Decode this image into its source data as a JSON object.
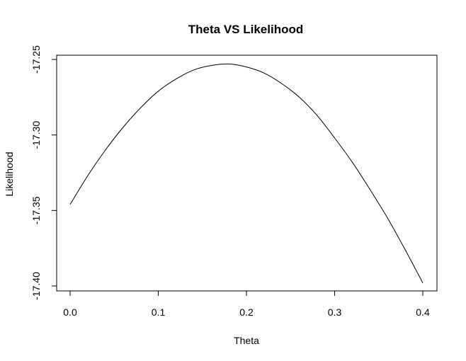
{
  "chart_data": {
    "type": "line",
    "title": "Theta VS Likelihood",
    "xlabel": "Theta",
    "ylabel": "Likelihood",
    "xlim": [
      0.0,
      0.4
    ],
    "ylim": [
      -17.4,
      -17.25
    ],
    "xticks": [
      "0.0",
      "0.1",
      "0.2",
      "0.3",
      "0.4"
    ],
    "yticks": [
      "-17.25",
      "-17.30",
      "-17.35",
      "-17.40"
    ],
    "grid": false,
    "legend": "none",
    "line_color": "#000000",
    "series": [
      {
        "x": [
          0.0,
          0.02,
          0.04,
          0.06,
          0.08,
          0.1,
          0.12,
          0.14,
          0.16,
          0.18,
          0.2,
          0.22,
          0.24,
          0.26,
          0.28,
          0.3,
          0.32,
          0.34,
          0.36,
          0.38,
          0.4
        ],
        "y": [
          -17.346,
          -17.327,
          -17.31,
          -17.295,
          -17.282,
          -17.271,
          -17.263,
          -17.257,
          -17.254,
          -17.253,
          -17.255,
          -17.259,
          -17.266,
          -17.275,
          -17.287,
          -17.302,
          -17.318,
          -17.336,
          -17.355,
          -17.376,
          -17.398
        ]
      }
    ]
  }
}
